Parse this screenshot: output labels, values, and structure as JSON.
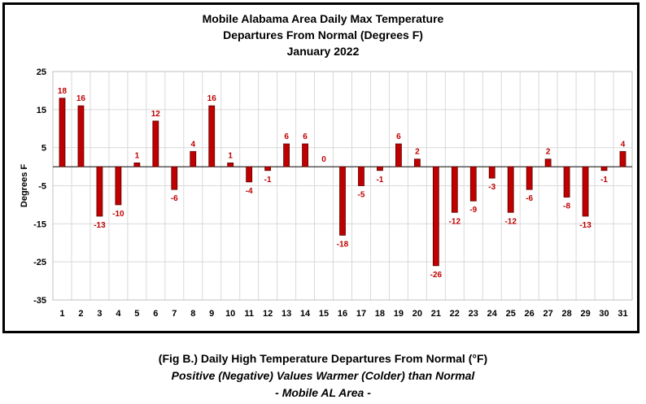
{
  "chart_data": {
    "type": "bar",
    "title_lines": [
      "Mobile Alabama Area Daily Max Temperature",
      "Departures From Normal (Degrees F)",
      "January 2022"
    ],
    "xlabel": "",
    "ylabel": "Degrees F",
    "ylim": [
      -35,
      25
    ],
    "yticks": [
      25,
      15,
      5,
      -5,
      -15,
      -25,
      -35
    ],
    "categories": [
      "1",
      "2",
      "3",
      "4",
      "5",
      "6",
      "7",
      "8",
      "9",
      "10",
      "11",
      "12",
      "13",
      "14",
      "15",
      "16",
      "17",
      "18",
      "19",
      "20",
      "21",
      "22",
      "23",
      "24",
      "25",
      "26",
      "27",
      "28",
      "29",
      "30",
      "31"
    ],
    "values": [
      18,
      16,
      -13,
      -10,
      1,
      12,
      -6,
      4,
      16,
      1,
      -4,
      -1,
      6,
      6,
      0,
      -18,
      -5,
      -1,
      6,
      2,
      -26,
      -12,
      -9,
      -3,
      -12,
      -6,
      2,
      -8,
      -13,
      -1,
      4
    ],
    "grid": true,
    "legend": "none",
    "colors": {
      "bar": "#c00000",
      "bar_edge": "#5a0000",
      "label": "#c00000",
      "grid": "#d9d9d9"
    }
  },
  "caption": {
    "line1": "(Fig B.) Daily High Temperature Departures From Normal (°F)",
    "line2": "Positive (Negative) Values Warmer (Colder) than Normal",
    "line3": "- Mobile AL Area -"
  }
}
